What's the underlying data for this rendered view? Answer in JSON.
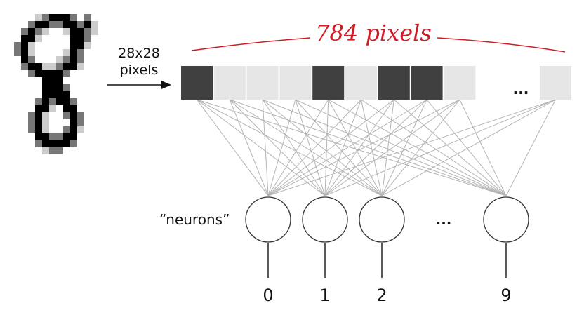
{
  "input_label": {
    "line1": "28x28",
    "line2": "pixels"
  },
  "pixel_count_label": "784 pixels",
  "pixel_row": {
    "cells": [
      "dark",
      "light",
      "light",
      "light",
      "dark",
      "light",
      "dark",
      "dark",
      "light",
      "light"
    ],
    "ellipsis": "...",
    "colors": {
      "dark": "#404040",
      "light": "#e6e6e6"
    }
  },
  "neurons_label": "“neurons”",
  "neurons_ellipsis": "...",
  "outputs": [
    "0",
    "1",
    "2",
    "9"
  ],
  "colors": {
    "annotation": "#d01c24",
    "connections": "#b4b4b4",
    "neuron_stroke": "#333333"
  }
}
